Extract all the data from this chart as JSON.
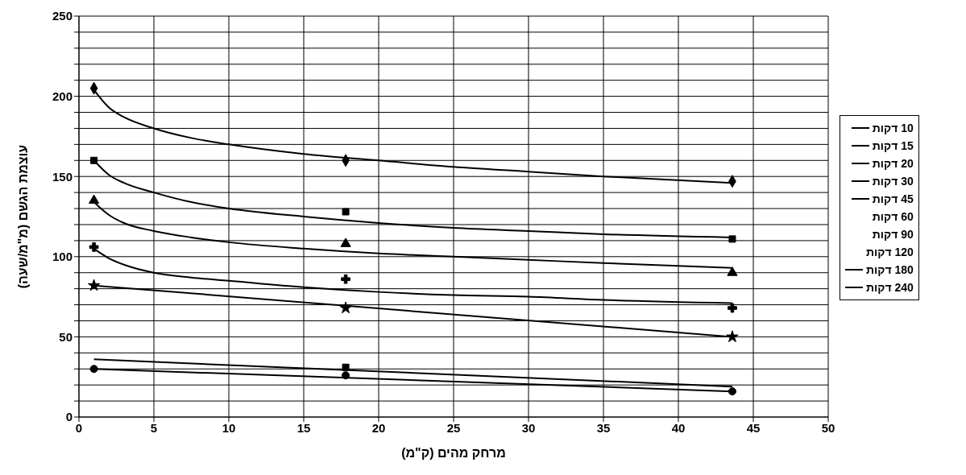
{
  "chart_data": {
    "type": "scatter",
    "xlabel": "מרחק מהים (ק\"מ)",
    "ylabel": "עוצמת הגשם (מ\"מ/שעה)",
    "x": [
      1,
      17.8,
      43.6
    ],
    "series": [
      {
        "name": "10 דקות",
        "color": "#000000",
        "marker": "diamond",
        "values": [
          205,
          160,
          147
        ]
      },
      {
        "name": "15 דקות",
        "color": "#000000",
        "marker": "square",
        "values": [
          160,
          128,
          111
        ]
      },
      {
        "name": "20 דקות",
        "color": "#000000",
        "marker": "triangle",
        "values": [
          135,
          108,
          90
        ]
      },
      {
        "name": "30 דקות",
        "color": "#000000",
        "marker": "cross",
        "values": [
          106,
          86,
          68
        ]
      },
      {
        "name": "45 דקות",
        "color": "#000000",
        "marker": "star",
        "values": [
          82,
          68,
          50
        ]
      },
      {
        "name": "60 דקות",
        "values": [
          null,
          null,
          null
        ]
      },
      {
        "name": "90 דקות",
        "values": [
          null,
          null,
          null
        ]
      },
      {
        "name": "120 דקות",
        "values": [
          null,
          null,
          null
        ]
      },
      {
        "name": "180 דקות",
        "color": "#000000",
        "marker": "circle",
        "values": [
          30,
          26,
          16
        ]
      },
      {
        "name": "240 דקות",
        "color": "#000000",
        "marker": "square",
        "values": [
          null,
          31,
          null
        ]
      },
      {
        "type": "line",
        "color": "#000000",
        "marker": "none",
        "x": [
          1,
          2,
          3,
          5,
          7.5,
          10,
          15,
          20,
          25,
          30,
          35,
          43.6
        ],
        "values": [
          204,
          193,
          187,
          180,
          174,
          170,
          164,
          160,
          156,
          153,
          150,
          146
        ]
      },
      {
        "type": "line",
        "color": "#000000",
        "marker": "none",
        "x": [
          1,
          2,
          3,
          5,
          7.5,
          10,
          15,
          20,
          25,
          30,
          35,
          43.6
        ],
        "values": [
          160,
          151,
          146,
          140,
          134,
          130,
          125,
          121,
          118,
          116,
          114,
          112
        ]
      },
      {
        "type": "line",
        "color": "#000000",
        "marker": "none",
        "x": [
          1,
          2,
          3,
          5,
          7.5,
          10,
          15,
          20,
          25,
          30,
          35,
          43.6
        ],
        "values": [
          134,
          126,
          121,
          116,
          112,
          109,
          105,
          102,
          100,
          98,
          96,
          93
        ]
      },
      {
        "type": "line",
        "color": "#000000",
        "marker": "none",
        "x": [
          1,
          2,
          3,
          5,
          7.5,
          10,
          15,
          20,
          25,
          30,
          35,
          43.6
        ],
        "values": [
          105,
          99,
          95,
          90,
          87,
          85,
          81,
          78,
          76,
          75,
          73,
          71
        ]
      },
      {
        "type": "line",
        "color": "#000000",
        "marker": "none",
        "x": [
          1,
          43.6
        ],
        "values": [
          82,
          50
        ]
      },
      {
        "type": "line",
        "color": "#000000",
        "marker": "none",
        "x": [
          1,
          43.6
        ],
        "values": [
          36,
          19
        ]
      },
      {
        "type": "line",
        "color": "#000000",
        "marker": "none",
        "x": [
          1,
          43.6
        ],
        "values": [
          30,
          16
        ]
      }
    ],
    "xlim": [
      0,
      50
    ],
    "xticks": [
      0,
      5,
      10,
      15,
      20,
      25,
      30,
      35,
      40,
      45,
      50
    ],
    "ylim": [
      0,
      250
    ],
    "yticks": [
      0,
      {
        "value": 10,
        "label": null
      },
      {
        "value": 20,
        "label": null
      },
      {
        "value": 30,
        "label": null
      },
      {
        "value": 40,
        "label": null
      },
      50,
      {
        "value": 60,
        "label": null
      },
      {
        "value": 70,
        "label": null
      },
      {
        "value": 80,
        "label": null
      },
      {
        "value": 90,
        "label": null
      },
      100,
      {
        "value": 110,
        "label": null
      },
      {
        "value": 120,
        "label": null
      },
      {
        "value": 130,
        "label": null
      },
      {
        "value": 140,
        "label": null
      },
      150,
      {
        "value": 160,
        "label": null
      },
      {
        "value": 170,
        "label": null
      },
      {
        "value": 180,
        "label": null
      },
      {
        "value": 190,
        "label": null
      },
      200,
      {
        "value": 210,
        "label": null
      },
      {
        "value": 220,
        "label": null
      },
      {
        "value": 230,
        "label": null
      },
      {
        "value": 240,
        "label": null
      },
      250
    ],
    "grid": true,
    "legend": "right"
  }
}
